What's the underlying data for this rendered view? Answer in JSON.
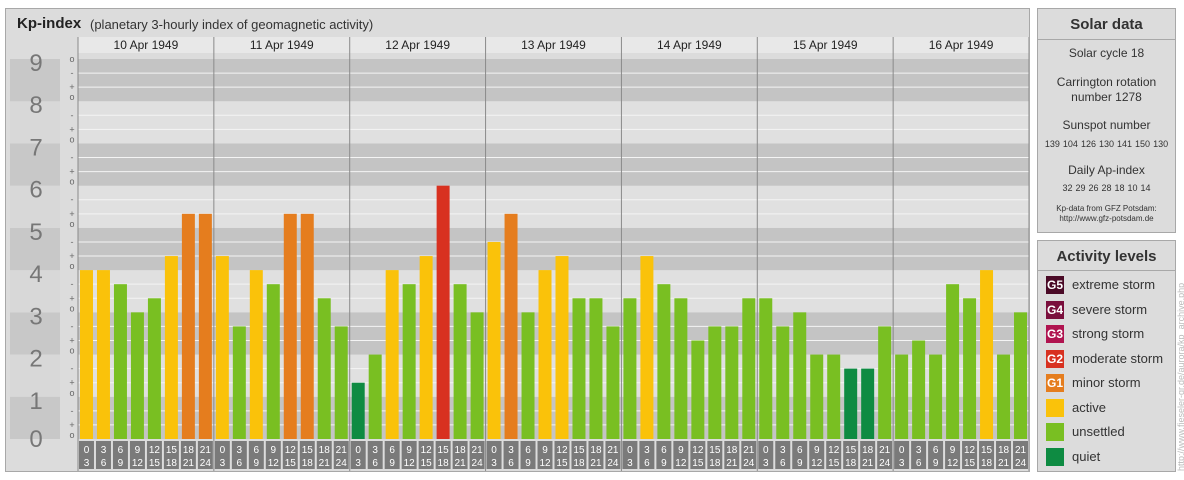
{
  "header": {
    "title": "Kp-index",
    "subtitle": "(planetary 3-hourly index of geomagnetic activity)"
  },
  "chart_data": {
    "type": "bar",
    "ylim": [
      0,
      9
    ],
    "y_major_ticks": [
      "0",
      "1",
      "2",
      "3",
      "4",
      "5",
      "6",
      "7",
      "8",
      "9"
    ],
    "y_minor_ticks": [
      "o",
      "+",
      "-"
    ],
    "days": [
      "10 Apr 1949",
      "11 Apr 1949",
      "12 Apr 1949",
      "13 Apr 1949",
      "14 Apr 1949",
      "15 Apr 1949",
      "16 Apr 1949"
    ],
    "hour_ticks_top": [
      "0",
      "3",
      "6",
      "9",
      "12",
      "15",
      "18",
      "21"
    ],
    "hour_ticks_bottom": [
      "3",
      "6",
      "9",
      "12",
      "15",
      "18",
      "21",
      "24"
    ],
    "values": [
      [
        4.0,
        4.0,
        3.667,
        3.0,
        3.333,
        4.333,
        5.333,
        5.333
      ],
      [
        4.333,
        2.667,
        4.0,
        3.667,
        5.333,
        5.333,
        3.333,
        2.667
      ],
      [
        1.333,
        2.0,
        4.0,
        3.667,
        4.333,
        6.0,
        3.667,
        3.0
      ],
      [
        4.667,
        5.333,
        3.0,
        4.0,
        4.333,
        3.333,
        3.333,
        2.667
      ],
      [
        3.333,
        4.333,
        3.667,
        3.333,
        2.333,
        2.667,
        2.667,
        3.333
      ],
      [
        3.333,
        2.667,
        3.0,
        2.0,
        2.0,
        1.667,
        1.667,
        2.667
      ],
      [
        2.0,
        2.333,
        2.0,
        3.667,
        3.333,
        4.0,
        2.0,
        3.0
      ]
    ]
  },
  "solar": {
    "title": "Solar data",
    "cycle": "Solar cycle 18",
    "carrington_1": "Carrington rotation",
    "carrington_2": "number 1278",
    "sunspot_title": "Sunspot number",
    "sunspot_values": [
      "139",
      "104",
      "126",
      "130",
      "141",
      "150",
      "130"
    ],
    "ap_title": "Daily Ap-index",
    "ap_values": [
      "32",
      "29",
      "26",
      "28",
      "18",
      "10",
      "14"
    ],
    "source_1": "Kp-data from GFZ Potsdam:",
    "source_2": "http://www.gfz-potsdam.de"
  },
  "activity": {
    "title": "Activity levels",
    "levels": [
      {
        "code": "G5",
        "label": "extreme storm",
        "color": "#4a0a26"
      },
      {
        "code": "G4",
        "label": "severe storm",
        "color": "#7a0e3c"
      },
      {
        "code": "G3",
        "label": "strong storm",
        "color": "#b01450"
      },
      {
        "code": "G2",
        "label": "moderate storm",
        "color": "#d83120"
      },
      {
        "code": "G1",
        "label": "minor storm",
        "color": "#e57d1e"
      },
      {
        "code": "",
        "label": "active",
        "color": "#fac20a"
      },
      {
        "code": "",
        "label": "unsettled",
        "color": "#79bf22"
      },
      {
        "code": "",
        "label": "quiet",
        "color": "#0e8b42"
      }
    ]
  },
  "credit": "http://www.fieseler-gr.de/aurora/kp_archive.php"
}
